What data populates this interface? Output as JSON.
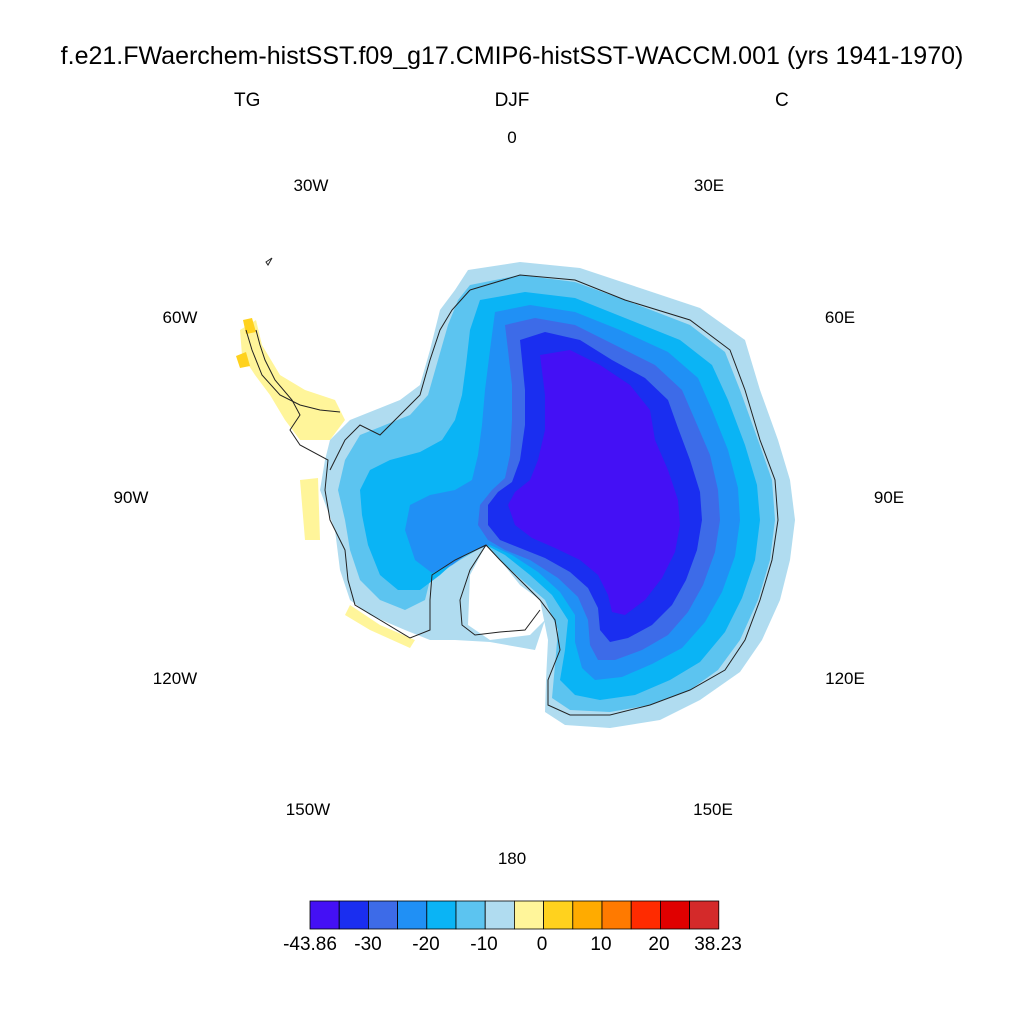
{
  "title": "f.e21.FWaerchem-histSST.f09_g17.CMIP6-histSST-WACCM.001 (yrs 1941-1970)",
  "left_string": "TG",
  "center_string": "DJF",
  "right_string": "C",
  "longitude_labels": {
    "lon_0": "0",
    "lon_30e": "30E",
    "lon_60e": "60E",
    "lon_90e": "90E",
    "lon_120e": "120E",
    "lon_150e": "150E",
    "lon_180": "180",
    "lon_150w": "150W",
    "lon_120w": "120W",
    "lon_90w": "90W",
    "lon_60w": "60W",
    "lon_30w": "30W"
  },
  "colorbar": {
    "min_label": "-43.86",
    "max_label": "38.23",
    "tick_labels": [
      "-30",
      "-20",
      "-10",
      "0",
      "10",
      "20"
    ],
    "colors": [
      "#4410f5",
      "#1a2ef0",
      "#3d6be8",
      "#2090f5",
      "#0ab4f5",
      "#5cc4f0",
      "#b0dcf0",
      "#fff59a",
      "#ffd21e",
      "#ffab00",
      "#ff7a00",
      "#ff2b00",
      "#e00000",
      "#d42a2a"
    ]
  },
  "chart_data": {
    "type": "heatmap",
    "projection": "south-polar-stereographic",
    "variable": "TG",
    "season": "DJF",
    "units": "C",
    "data_range": [
      -43.86,
      38.23
    ],
    "contour_levels": [
      -35,
      -30,
      -25,
      -20,
      -15,
      -10,
      -5,
      0,
      5,
      10,
      15,
      20,
      25
    ],
    "fill_colors": {
      "interior_plateau": "#4410f5",
      "inner_ring": "#1a2ef0",
      "ring_3": "#3d6be8",
      "ring_4": "#2090f5",
      "ring_5": "#0ab4f5",
      "ring_6": "#5cc4f0",
      "coast": "#b0dcf0",
      "peninsula_fringe": "#fff59a",
      "peninsula_tip": "#ffd21e"
    }
  }
}
